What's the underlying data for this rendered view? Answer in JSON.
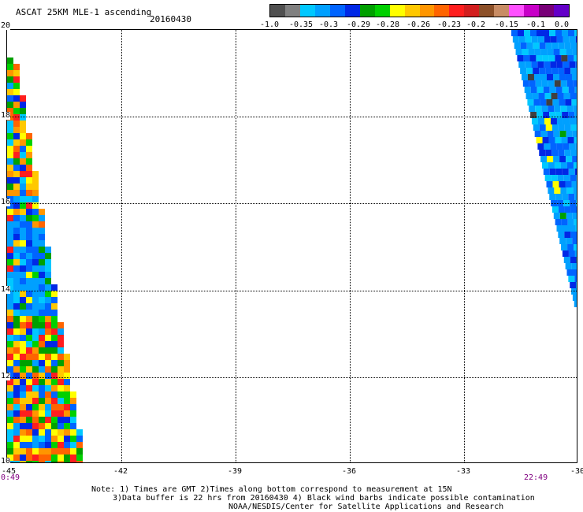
{
  "header": {
    "title": "ASCAT 25KM MLE-1 ascending",
    "date": "20160430"
  },
  "colorbar": {
    "colors": [
      "#505050",
      "#808080",
      "#00c8ff",
      "#00a0ff",
      "#0064ff",
      "#0028e6",
      "#00a000",
      "#00d000",
      "#ffff00",
      "#ffc800",
      "#ff9600",
      "#ff6400",
      "#ff1e1e",
      "#d21e1e",
      "#8c5028",
      "#c88c64",
      "#ff50ff",
      "#c800c8",
      "#780078",
      "#6400c8"
    ],
    "labels": [
      "-1.0",
      "-0.35",
      "-0.3",
      "-0.29",
      "-0.28",
      "-0.26",
      "-0.23",
      "-0.2",
      "-0.15",
      "-0.1",
      "0.0"
    ]
  },
  "axes": {
    "x_ticks": [
      "-45",
      "-42",
      "-39",
      "-36",
      "-33",
      "-30"
    ],
    "y_ticks": [
      "20",
      "18",
      "16",
      "14",
      "12",
      "10"
    ],
    "xlim": [
      -45,
      -30
    ],
    "ylim": [
      10,
      20
    ]
  },
  "times": {
    "left": "0:49",
    "right": "22:49"
  },
  "footer": {
    "line1": "Note: 1) Times are GMT 2)Times along bottom correspond to measurement at 15N",
    "line2": "3)Data buffer is 22 hrs from 20160430 4) Black wind barbs indicate possible contamination",
    "line3": "NOAA/NESDIS/Center for Satellite Applications and Research"
  }
}
